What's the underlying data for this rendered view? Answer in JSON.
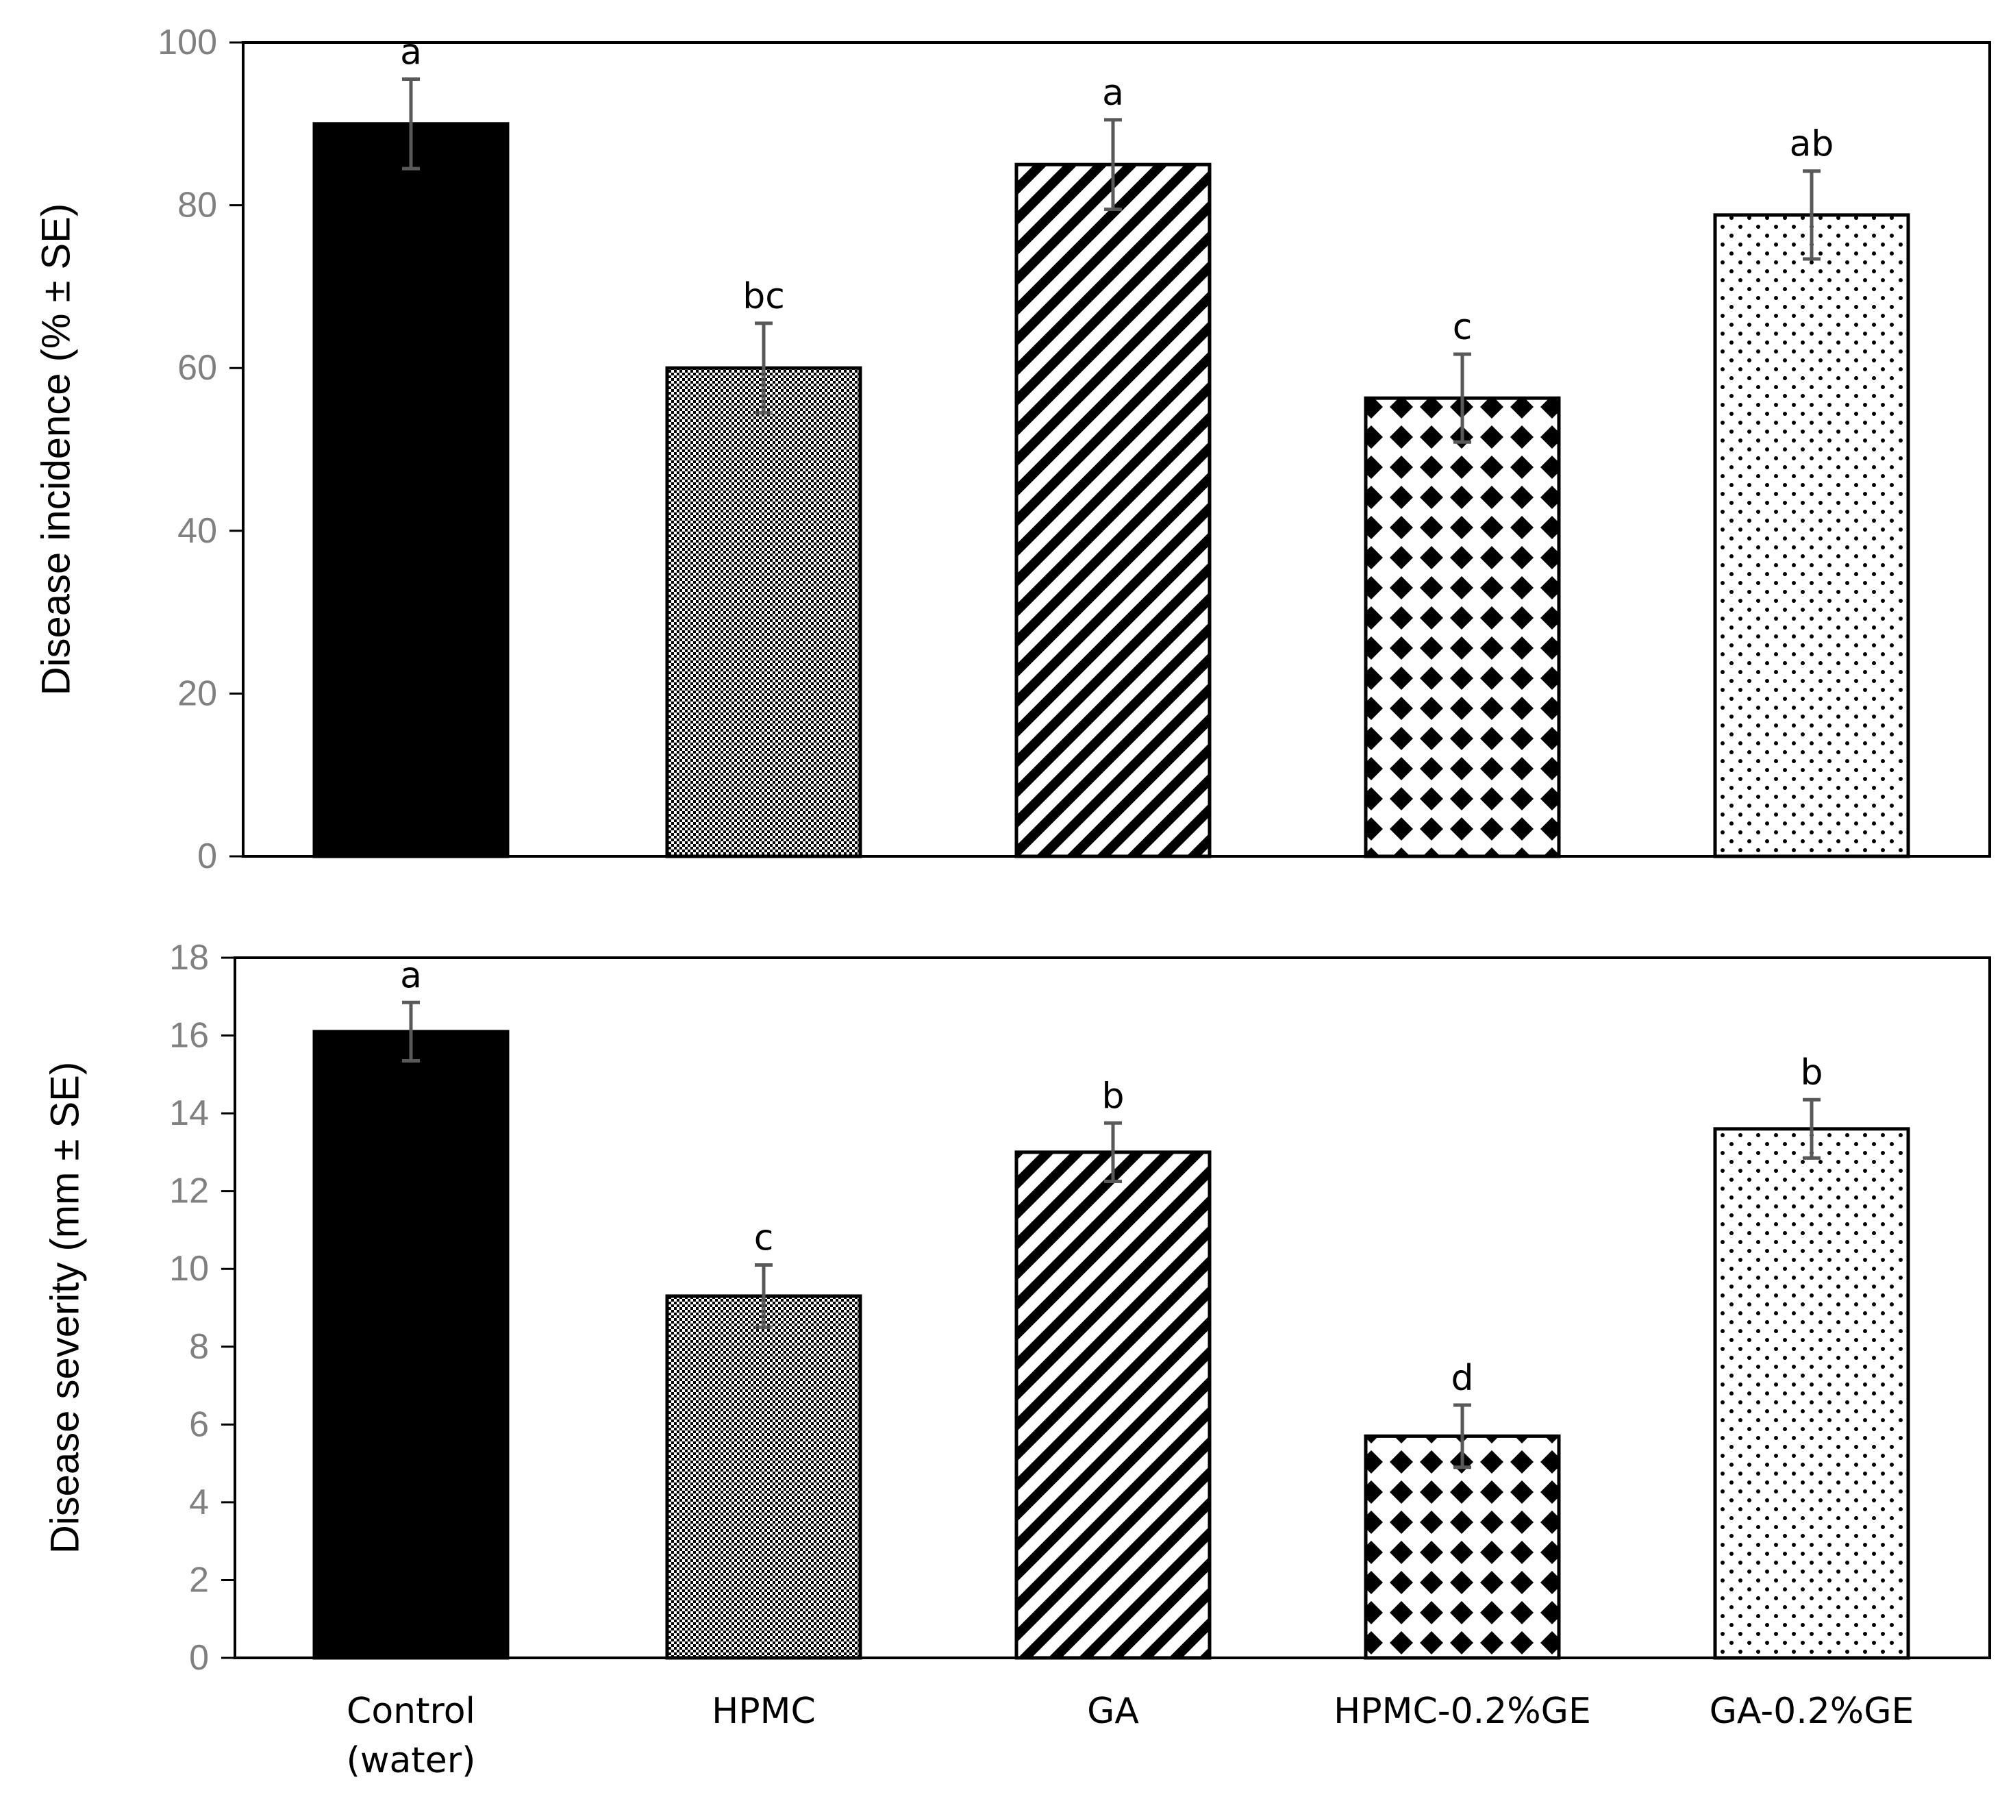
{
  "chart_data": [
    {
      "type": "bar",
      "title": "",
      "xlabel": "",
      "ylabel": "Disease incidence (% ± SE)",
      "ylim": [
        0,
        100
      ],
      "yticks": [
        0,
        20,
        40,
        60,
        80,
        100
      ],
      "categories": [
        "Control (water)",
        "HPMC",
        "GA",
        "HPMC-0.2%GE",
        "GA-0.2%GE"
      ],
      "values": [
        90,
        60,
        85,
        56.3,
        78.8
      ],
      "errors": [
        5.5,
        5.5,
        5.5,
        5.4,
        5.4
      ],
      "significance": [
        "a",
        "bc",
        "a",
        "c",
        "ab"
      ],
      "patterns": [
        "solid",
        "fine-check",
        "diagonal",
        "diamond",
        "dots"
      ],
      "grid": false
    },
    {
      "type": "bar",
      "title": "",
      "xlabel": "",
      "ylabel": "Disease severity (mm ± SE)",
      "ylim": [
        0,
        18
      ],
      "yticks": [
        0,
        2,
        4,
        6,
        8,
        10,
        12,
        14,
        16,
        18
      ],
      "categories": [
        "Control (water)",
        "HPMC",
        "GA",
        "HPMC-0.2%GE",
        "GA-0.2%GE"
      ],
      "values": [
        16.1,
        9.3,
        13.0,
        5.7,
        13.6
      ],
      "errors": [
        0.75,
        0.8,
        0.75,
        0.8,
        0.75
      ],
      "significance": [
        "a",
        "c",
        "b",
        "d",
        "b"
      ],
      "patterns": [
        "solid",
        "fine-check",
        "diagonal",
        "diamond",
        "dots"
      ],
      "grid": false
    }
  ],
  "x_labels": [
    [
      "Control",
      "(water)"
    ],
    [
      "HPMC"
    ],
    [
      "GA"
    ],
    [
      "HPMC-0.2%GE"
    ],
    [
      "GA-0.2%GE"
    ]
  ],
  "colors": {
    "bar_edge": "#000000",
    "error_bar": "#595959",
    "tick_text": "#808080"
  }
}
